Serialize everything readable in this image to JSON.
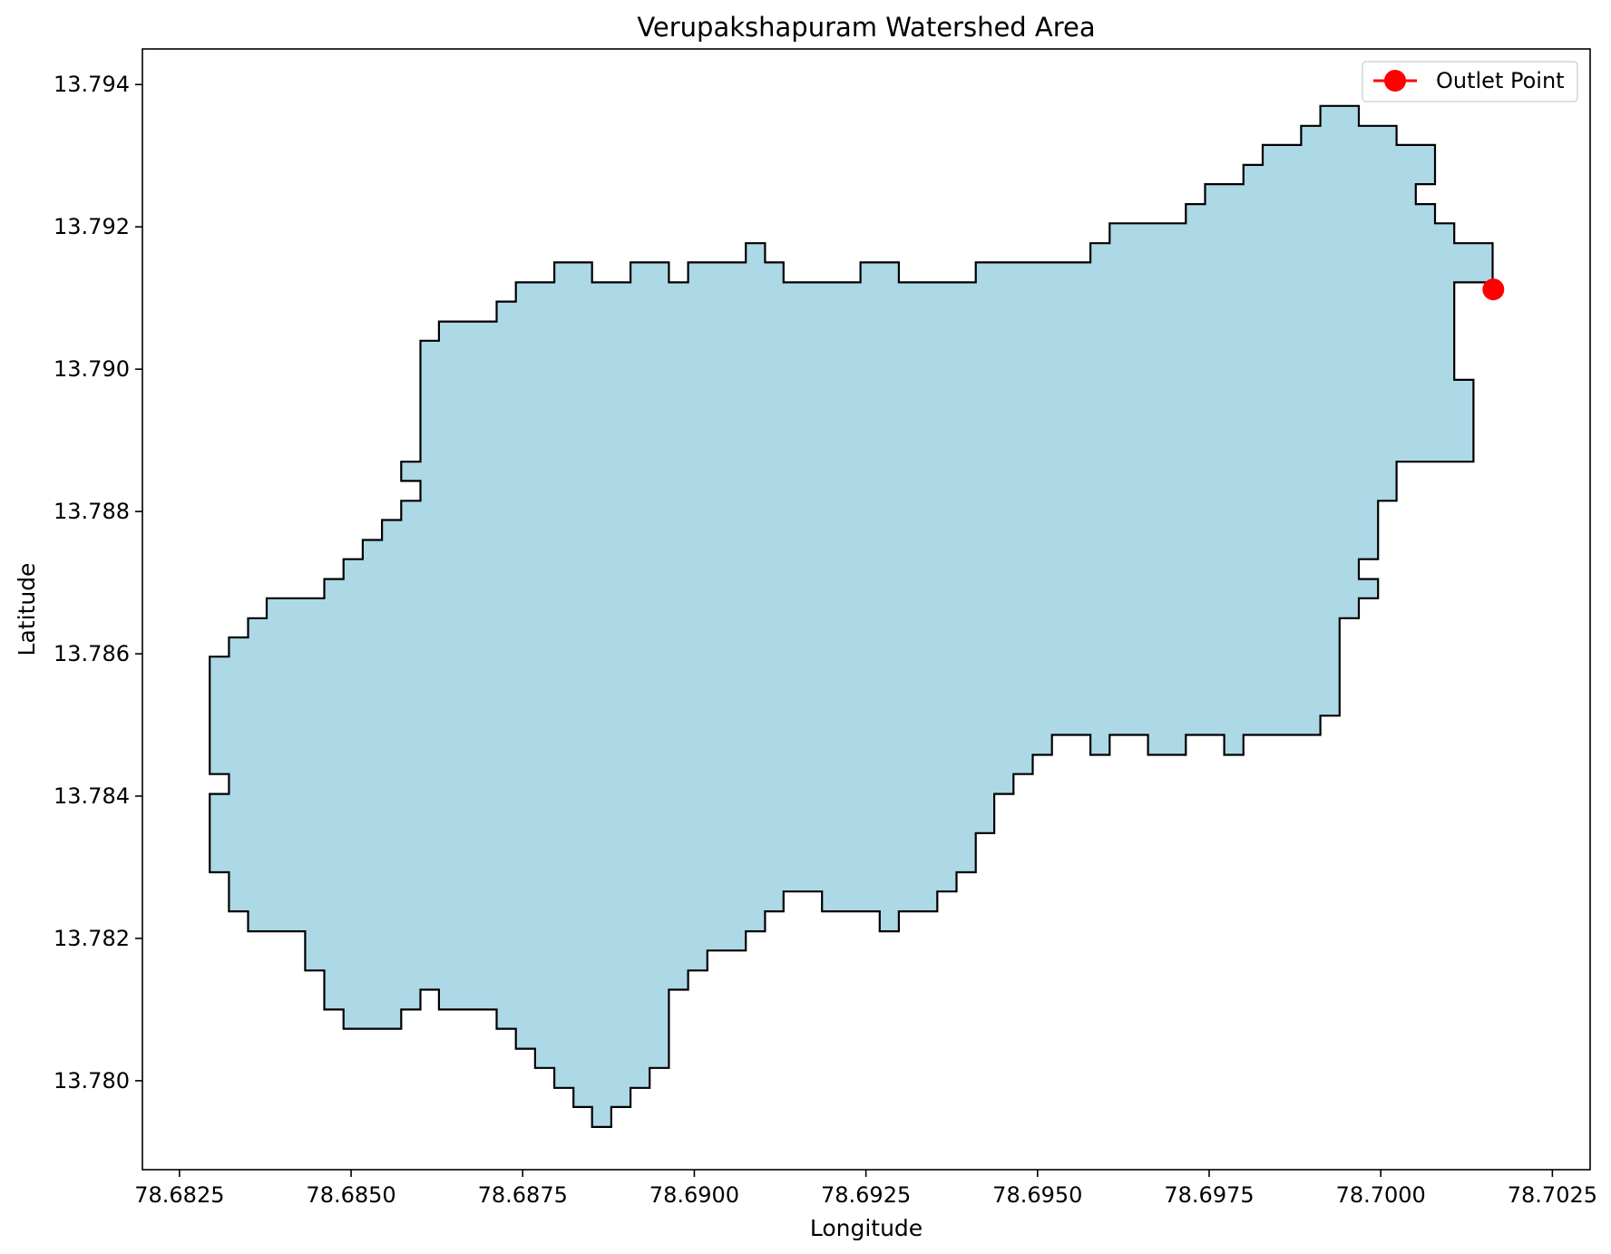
{
  "chart_data": {
    "type": "area",
    "title": "Verupakshapuram Watershed Area",
    "xlabel": "Longitude",
    "ylabel": "Latitude",
    "xlim": [
      78.68196,
      78.70305
    ],
    "ylim": [
      13.77875,
      13.7945
    ],
    "xticks": [
      78.6825,
      78.685,
      78.6875,
      78.69,
      78.6925,
      78.695,
      78.6975,
      78.7,
      78.7025
    ],
    "xtick_labels": [
      "78.6825",
      "78.6850",
      "78.6875",
      "78.6900",
      "78.6925",
      "78.6950",
      "78.6975",
      "78.7000",
      "78.7025"
    ],
    "yticks": [
      13.78,
      13.782,
      13.784,
      13.786,
      13.788,
      13.79,
      13.792,
      13.794
    ],
    "ytick_labels": [
      "13.780",
      "13.782",
      "13.784",
      "13.786",
      "13.788",
      "13.790",
      "13.792",
      "13.794"
    ],
    "grid": false,
    "legend": {
      "location": "upper right",
      "entries": [
        "Outlet Point"
      ]
    },
    "colors": {
      "fill": "#add8e6",
      "edge": "#000000",
      "outlet": "#ff0000"
    },
    "outlet_point": {
      "label": "Outlet Point",
      "x": 78.70164,
      "y": 13.79112
    },
    "watershed_boundary": [
      [
        78.68294,
        13.78596
      ],
      [
        78.68322,
        13.78596
      ],
      [
        78.68322,
        13.78623
      ],
      [
        78.6835,
        13.78623
      ],
      [
        78.6835,
        13.7865
      ],
      [
        78.68377,
        13.7865
      ],
      [
        78.68377,
        13.78678
      ],
      [
        78.68461,
        13.78678
      ],
      [
        78.68461,
        13.78705
      ],
      [
        78.68489,
        13.78705
      ],
      [
        78.68489,
        13.78733
      ],
      [
        78.68517,
        13.78733
      ],
      [
        78.68517,
        13.7876
      ],
      [
        78.68545,
        13.7876
      ],
      [
        78.68545,
        13.78788
      ],
      [
        78.68573,
        13.78788
      ],
      [
        78.68573,
        13.78815
      ],
      [
        78.68601,
        13.78815
      ],
      [
        78.68601,
        13.78843
      ],
      [
        78.68573,
        13.78843
      ],
      [
        78.68573,
        13.7887
      ],
      [
        78.68601,
        13.7887
      ],
      [
        78.68601,
        13.7904
      ],
      [
        78.68628,
        13.7904
      ],
      [
        78.68628,
        13.79067
      ],
      [
        78.68712,
        13.79067
      ],
      [
        78.68712,
        13.79095
      ],
      [
        78.6874,
        13.79095
      ],
      [
        78.6874,
        13.79122
      ],
      [
        78.68796,
        13.79122
      ],
      [
        78.68796,
        13.7915
      ],
      [
        78.68851,
        13.7915
      ],
      [
        78.68851,
        13.79122
      ],
      [
        78.68907,
        13.79122
      ],
      [
        78.68907,
        13.7915
      ],
      [
        78.68963,
        13.7915
      ],
      [
        78.68963,
        13.79122
      ],
      [
        78.68991,
        13.79122
      ],
      [
        78.68991,
        13.7915
      ],
      [
        78.69075,
        13.7915
      ],
      [
        78.69075,
        13.79177
      ],
      [
        78.69103,
        13.79177
      ],
      [
        78.69103,
        13.7915
      ],
      [
        78.6913,
        13.7915
      ],
      [
        78.6913,
        13.79122
      ],
      [
        78.69242,
        13.79122
      ],
      [
        78.69242,
        13.7915
      ],
      [
        78.69298,
        13.7915
      ],
      [
        78.69298,
        13.79122
      ],
      [
        78.6941,
        13.79122
      ],
      [
        78.6941,
        13.7915
      ],
      [
        78.69577,
        13.7915
      ],
      [
        78.69577,
        13.79177
      ],
      [
        78.69605,
        13.79177
      ],
      [
        78.69605,
        13.79205
      ],
      [
        78.69716,
        13.79205
      ],
      [
        78.69716,
        13.79232
      ],
      [
        78.69744,
        13.79232
      ],
      [
        78.69744,
        13.7926
      ],
      [
        78.698,
        13.7926
      ],
      [
        78.698,
        13.79287
      ],
      [
        78.69828,
        13.79287
      ],
      [
        78.69828,
        13.79315
      ],
      [
        78.69884,
        13.79315
      ],
      [
        78.69884,
        13.79342
      ],
      [
        78.69912,
        13.79342
      ],
      [
        78.69912,
        13.7937
      ],
      [
        78.69968,
        13.7937
      ],
      [
        78.69968,
        13.79342
      ],
      [
        78.70023,
        13.79342
      ],
      [
        78.70023,
        13.79315
      ],
      [
        78.70079,
        13.79315
      ],
      [
        78.70079,
        13.7926
      ],
      [
        78.70051,
        13.7926
      ],
      [
        78.70051,
        13.79232
      ],
      [
        78.70079,
        13.79232
      ],
      [
        78.70079,
        13.79205
      ],
      [
        78.70107,
        13.79205
      ],
      [
        78.70107,
        13.79177
      ],
      [
        78.70163,
        13.79177
      ],
      [
        78.70163,
        13.79122
      ],
      [
        78.70107,
        13.79122
      ],
      [
        78.70107,
        13.78985
      ],
      [
        78.70135,
        13.78985
      ],
      [
        78.70135,
        13.7887
      ],
      [
        78.70023,
        13.7887
      ],
      [
        78.70023,
        13.78815
      ],
      [
        78.69996,
        13.78815
      ],
      [
        78.69996,
        13.78733
      ],
      [
        78.69968,
        13.78733
      ],
      [
        78.69968,
        13.78705
      ],
      [
        78.69996,
        13.78705
      ],
      [
        78.69996,
        13.78678
      ],
      [
        78.69968,
        13.78678
      ],
      [
        78.69968,
        13.7865
      ],
      [
        78.6994,
        13.7865
      ],
      [
        78.6994,
        13.78513
      ],
      [
        78.69912,
        13.78513
      ],
      [
        78.69912,
        13.78486
      ],
      [
        78.698,
        13.78486
      ],
      [
        78.698,
        13.78458
      ],
      [
        78.69772,
        13.78458
      ],
      [
        78.69772,
        13.78486
      ],
      [
        78.69716,
        13.78486
      ],
      [
        78.69716,
        13.78458
      ],
      [
        78.69661,
        13.78458
      ],
      [
        78.69661,
        13.78486
      ],
      [
        78.69605,
        13.78486
      ],
      [
        78.69605,
        13.78458
      ],
      [
        78.69577,
        13.78458
      ],
      [
        78.69577,
        13.78486
      ],
      [
        78.69521,
        13.78486
      ],
      [
        78.69521,
        13.78458
      ],
      [
        78.69493,
        13.78458
      ],
      [
        78.69493,
        13.78431
      ],
      [
        78.69465,
        13.78431
      ],
      [
        78.69465,
        13.78403
      ],
      [
        78.69437,
        13.78403
      ],
      [
        78.69437,
        13.78348
      ],
      [
        78.6941,
        13.78348
      ],
      [
        78.6941,
        13.78293
      ],
      [
        78.69382,
        13.78293
      ],
      [
        78.69382,
        13.78266
      ],
      [
        78.69354,
        13.78266
      ],
      [
        78.69354,
        13.78238
      ],
      [
        78.69298,
        13.78238
      ],
      [
        78.69298,
        13.7821
      ],
      [
        78.6927,
        13.7821
      ],
      [
        78.6927,
        13.78238
      ],
      [
        78.69186,
        13.78238
      ],
      [
        78.69186,
        13.78266
      ],
      [
        78.6913,
        13.78266
      ],
      [
        78.6913,
        13.78238
      ],
      [
        78.69103,
        13.78238
      ],
      [
        78.69103,
        13.7821
      ],
      [
        78.69075,
        13.7821
      ],
      [
        78.69075,
        13.78183
      ],
      [
        78.69019,
        13.78183
      ],
      [
        78.69019,
        13.78155
      ],
      [
        78.68991,
        13.78155
      ],
      [
        78.68991,
        13.78128
      ],
      [
        78.68963,
        13.78128
      ],
      [
        78.68963,
        13.78018
      ],
      [
        78.68935,
        13.78018
      ],
      [
        78.68935,
        13.7799
      ],
      [
        78.68907,
        13.7799
      ],
      [
        78.68907,
        13.77963
      ],
      [
        78.68879,
        13.77963
      ],
      [
        78.68879,
        13.77935
      ],
      [
        78.68851,
        13.77935
      ],
      [
        78.68851,
        13.77963
      ],
      [
        78.68824,
        13.77963
      ],
      [
        78.68824,
        13.7799
      ],
      [
        78.68796,
        13.7799
      ],
      [
        78.68796,
        13.78018
      ],
      [
        78.68768,
        13.78018
      ],
      [
        78.68768,
        13.78045
      ],
      [
        78.6874,
        13.78045
      ],
      [
        78.6874,
        13.78073
      ],
      [
        78.68712,
        13.78073
      ],
      [
        78.68712,
        13.781
      ],
      [
        78.68628,
        13.781
      ],
      [
        78.68628,
        13.78128
      ],
      [
        78.68601,
        13.78128
      ],
      [
        78.68601,
        13.781
      ],
      [
        78.68573,
        13.781
      ],
      [
        78.68573,
        13.78073
      ],
      [
        78.68489,
        13.78073
      ],
      [
        78.68489,
        13.781
      ],
      [
        78.68461,
        13.781
      ],
      [
        78.68461,
        13.78155
      ],
      [
        78.68433,
        13.78155
      ],
      [
        78.68433,
        13.7821
      ],
      [
        78.6835,
        13.7821
      ],
      [
        78.6835,
        13.78238
      ],
      [
        78.68322,
        13.78238
      ],
      [
        78.68322,
        13.78293
      ],
      [
        78.68294,
        13.78293
      ],
      [
        78.68294,
        13.78403
      ],
      [
        78.68322,
        13.78403
      ],
      [
        78.68322,
        13.78431
      ],
      [
        78.68294,
        13.78431
      ]
    ]
  }
}
